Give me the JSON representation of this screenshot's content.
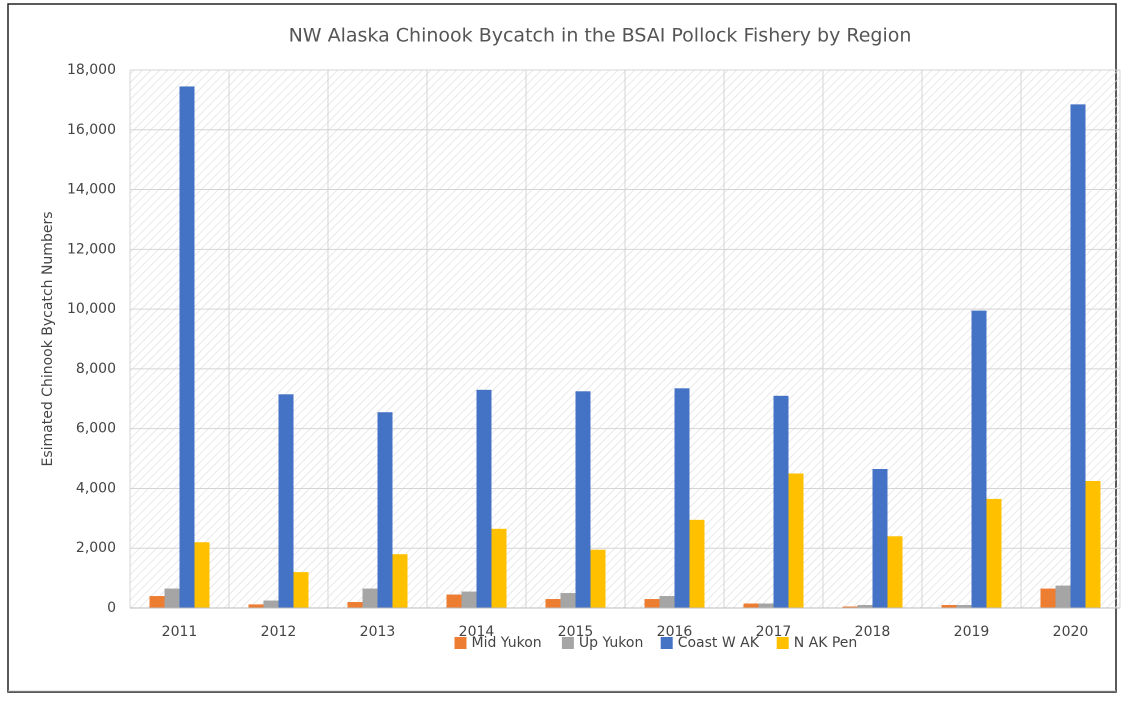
{
  "chart_data": {
    "type": "bar",
    "title": "NW Alaska Chinook Bycatch in the BSAI Pollock Fishery by Region",
    "y_label": "Esimated Chinook Bycatch Numbers",
    "categories": [
      "2011",
      "2012",
      "2013",
      "2014",
      "2015",
      "2016",
      "2017",
      "2018",
      "2019",
      "2020"
    ],
    "series": [
      {
        "name": "Mid Yukon",
        "color": "#ed7d31",
        "values": [
          400,
          120,
          200,
          450,
          300,
          300,
          150,
          50,
          100,
          650
        ]
      },
      {
        "name": "Up Yukon",
        "color": "#a5a5a5",
        "values": [
          650,
          250,
          650,
          550,
          500,
          400,
          150,
          100,
          100,
          750
        ]
      },
      {
        "name": "Coast W AK",
        "color": "#4472c4",
        "values": [
          17450,
          7150,
          6550,
          7300,
          7250,
          7350,
          7100,
          4650,
          9950,
          16850
        ]
      },
      {
        "name": "N AK Pen",
        "color": "#ffc000",
        "values": [
          2200,
          1200,
          1800,
          2650,
          1950,
          2950,
          4500,
          2400,
          3650,
          4250
        ]
      }
    ],
    "ylim": [
      0,
      18000
    ],
    "yticks": [
      0,
      {
        "value": 2000,
        "label": "2,000"
      },
      {
        "value": 4000,
        "label": "4,000"
      },
      {
        "value": 6000,
        "label": "6,000"
      },
      {
        "value": 8000,
        "label": "8,000"
      },
      {
        "value": 10000,
        "label": "10,000"
      },
      {
        "value": 12000,
        "label": "12,000"
      },
      {
        "value": 14000,
        "label": "14,000"
      },
      {
        "value": 16000,
        "label": "16,000"
      },
      {
        "value": 18000,
        "label": "18,000"
      }
    ],
    "grid": true,
    "legend": "bottom"
  }
}
